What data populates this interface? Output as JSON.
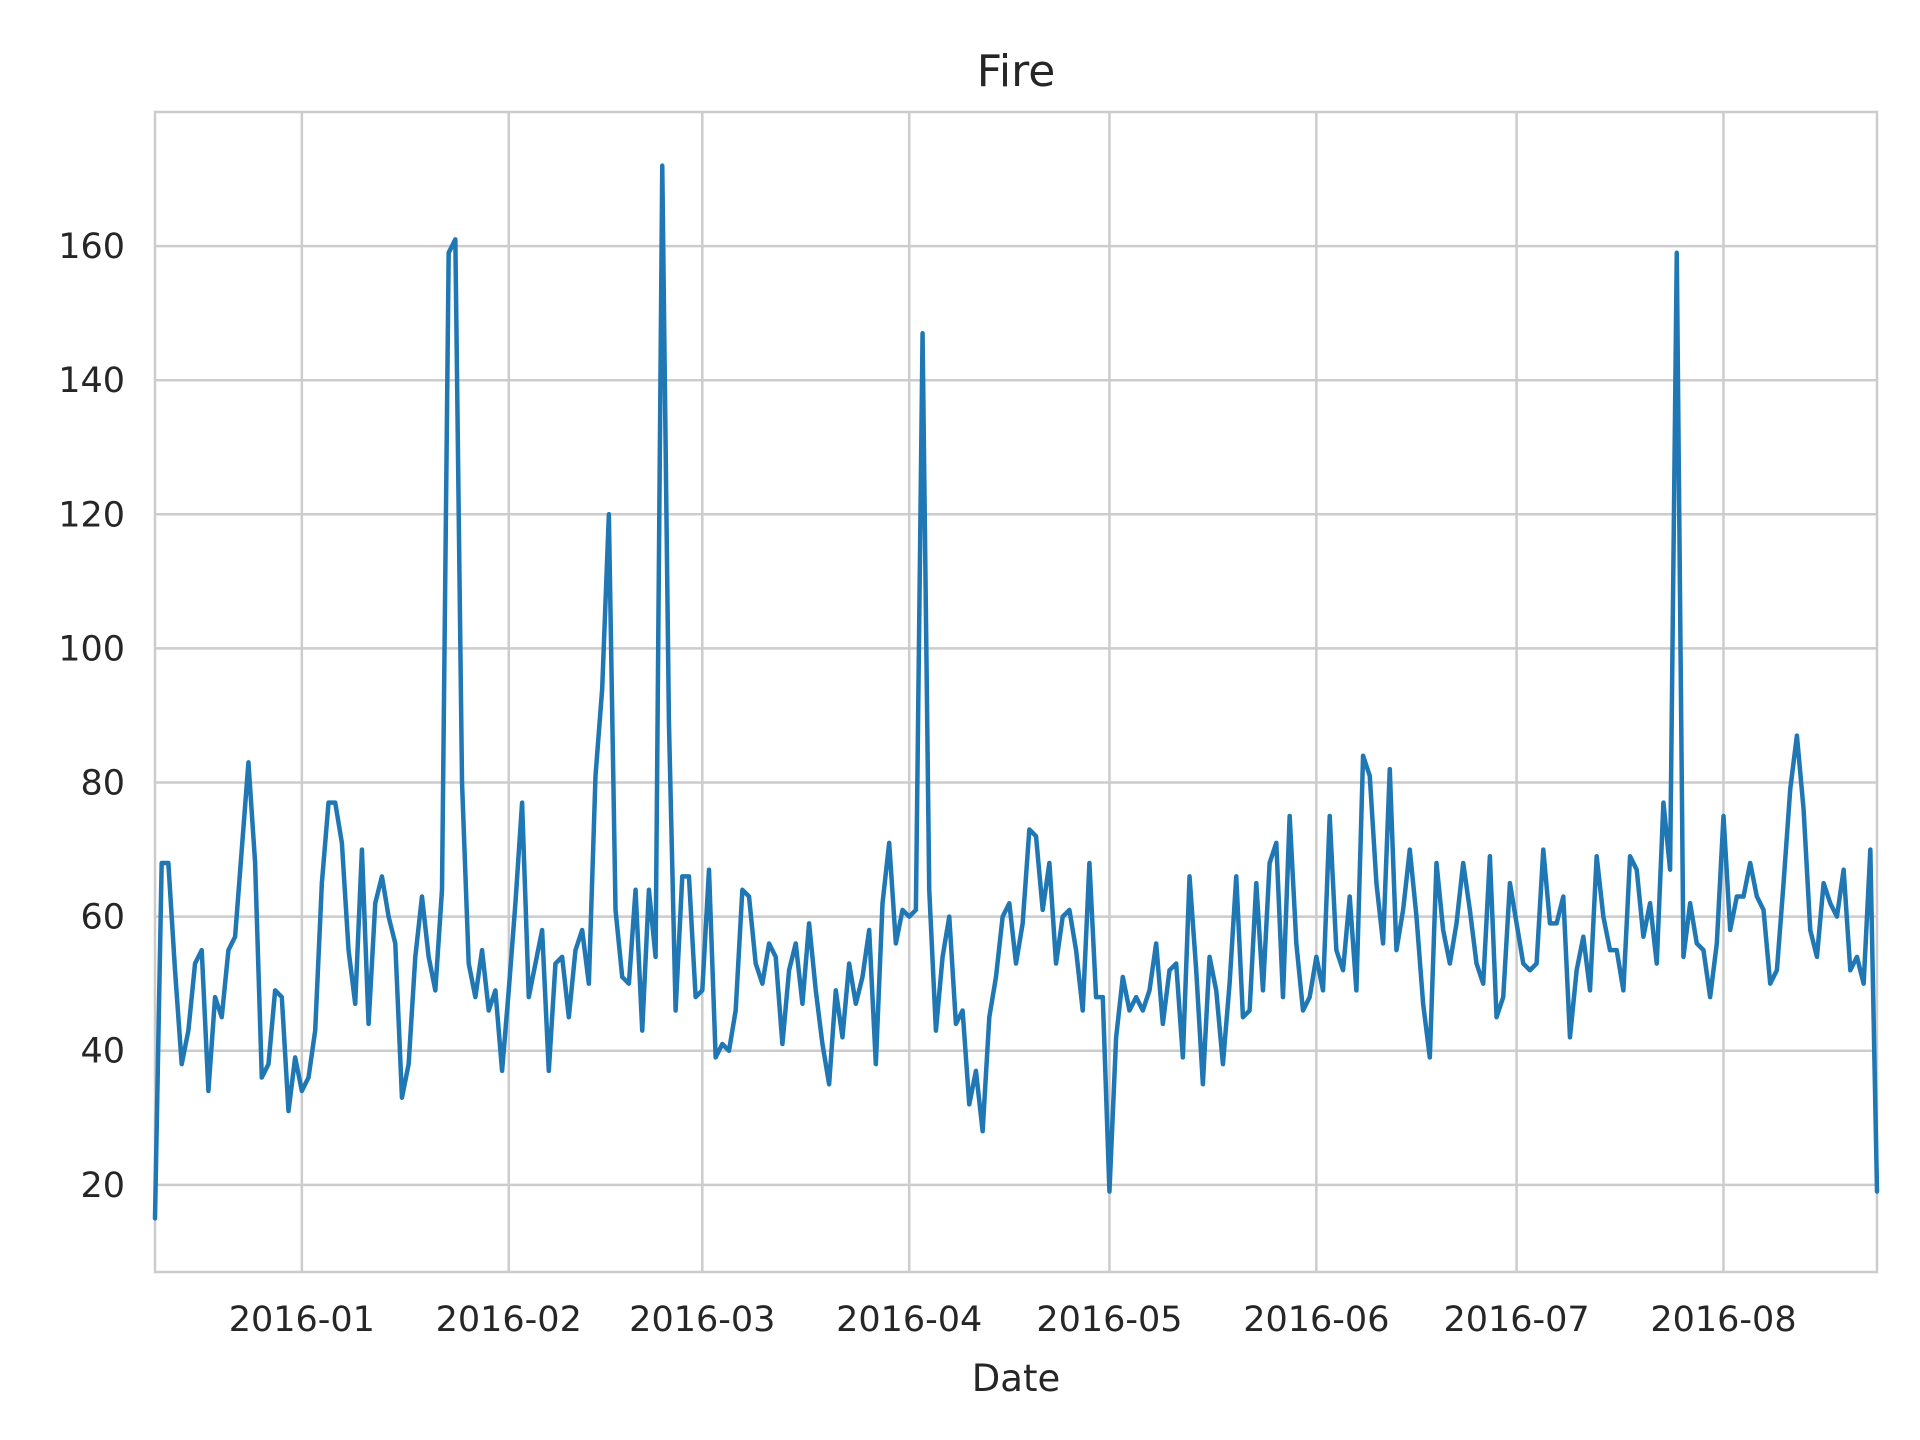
{
  "chart_data": {
    "type": "line",
    "title": "Fire",
    "xlabel": "Date",
    "ylabel": "",
    "x_start": "2015-12-10",
    "x_end": "2016-08-24",
    "xlim": [
      "2015-12-10",
      "2016-08-24"
    ],
    "ylim": [
      7,
      180
    ],
    "x_ticks": [
      {
        "date": "2016-01-01",
        "label": "2016-01"
      },
      {
        "date": "2016-02-01",
        "label": "2016-02"
      },
      {
        "date": "2016-03-01",
        "label": "2016-03"
      },
      {
        "date": "2016-04-01",
        "label": "2016-04"
      },
      {
        "date": "2016-05-01",
        "label": "2016-05"
      },
      {
        "date": "2016-06-01",
        "label": "2016-06"
      },
      {
        "date": "2016-07-01",
        "label": "2016-07"
      },
      {
        "date": "2016-08-01",
        "label": "2016-08"
      }
    ],
    "y_ticks": [
      20,
      40,
      60,
      80,
      100,
      120,
      140,
      160
    ],
    "grid": true,
    "legend": "none",
    "series": [
      {
        "color": "#1f77b4",
        "values": [
          15,
          68,
          68,
          52,
          38,
          43,
          53,
          55,
          34,
          48,
          45,
          55,
          57,
          70,
          83,
          68,
          36,
          38,
          49,
          48,
          31,
          39,
          34,
          36,
          43,
          65,
          77,
          77,
          71,
          55,
          47,
          70,
          44,
          62,
          66,
          60,
          56,
          33,
          38,
          54,
          63,
          54,
          49,
          64,
          159,
          161,
          80,
          53,
          48,
          55,
          46,
          49,
          37,
          49,
          62,
          77,
          48,
          53,
          58,
          37,
          53,
          54,
          45,
          55,
          58,
          50,
          81,
          94,
          120,
          61,
          51,
          50,
          64,
          43,
          64,
          54,
          172,
          89,
          46,
          66,
          66,
          48,
          49,
          67,
          39,
          41,
          40,
          46,
          64,
          63,
          53,
          50,
          56,
          54,
          41,
          52,
          56,
          47,
          59,
          49,
          41,
          35,
          49,
          42,
          53,
          47,
          51,
          58,
          38,
          62,
          71,
          56,
          61,
          60,
          61,
          147,
          64,
          43,
          54,
          60,
          44,
          46,
          32,
          37,
          28,
          45,
          51,
          60,
          62,
          53,
          59,
          73,
          72,
          61,
          68,
          53,
          60,
          61,
          55,
          46,
          68,
          48,
          48,
          19,
          42,
          51,
          46,
          48,
          46,
          49,
          56,
          44,
          52,
          53,
          39,
          66,
          52,
          35,
          54,
          49,
          38,
          50,
          66,
          45,
          46,
          65,
          49,
          68,
          71,
          48,
          75,
          56,
          46,
          48,
          54,
          49,
          75,
          55,
          52,
          63,
          49,
          84,
          81,
          65,
          56,
          82,
          55,
          61,
          70,
          60,
          47,
          39,
          68,
          58,
          53,
          59,
          68,
          61,
          53,
          50,
          69,
          45,
          48,
          65,
          59,
          53,
          52,
          53,
          70,
          59,
          59,
          63,
          42,
          52,
          57,
          49,
          69,
          60,
          55,
          55,
          49,
          69,
          67,
          57,
          62,
          53,
          77,
          67,
          159,
          54,
          62,
          56,
          55,
          48,
          56,
          75,
          58,
          63,
          63,
          68,
          63,
          61,
          50,
          52,
          65,
          79,
          87,
          76,
          58,
          54,
          65,
          62,
          60,
          67,
          52,
          54,
          50,
          70,
          19
        ]
      }
    ]
  }
}
